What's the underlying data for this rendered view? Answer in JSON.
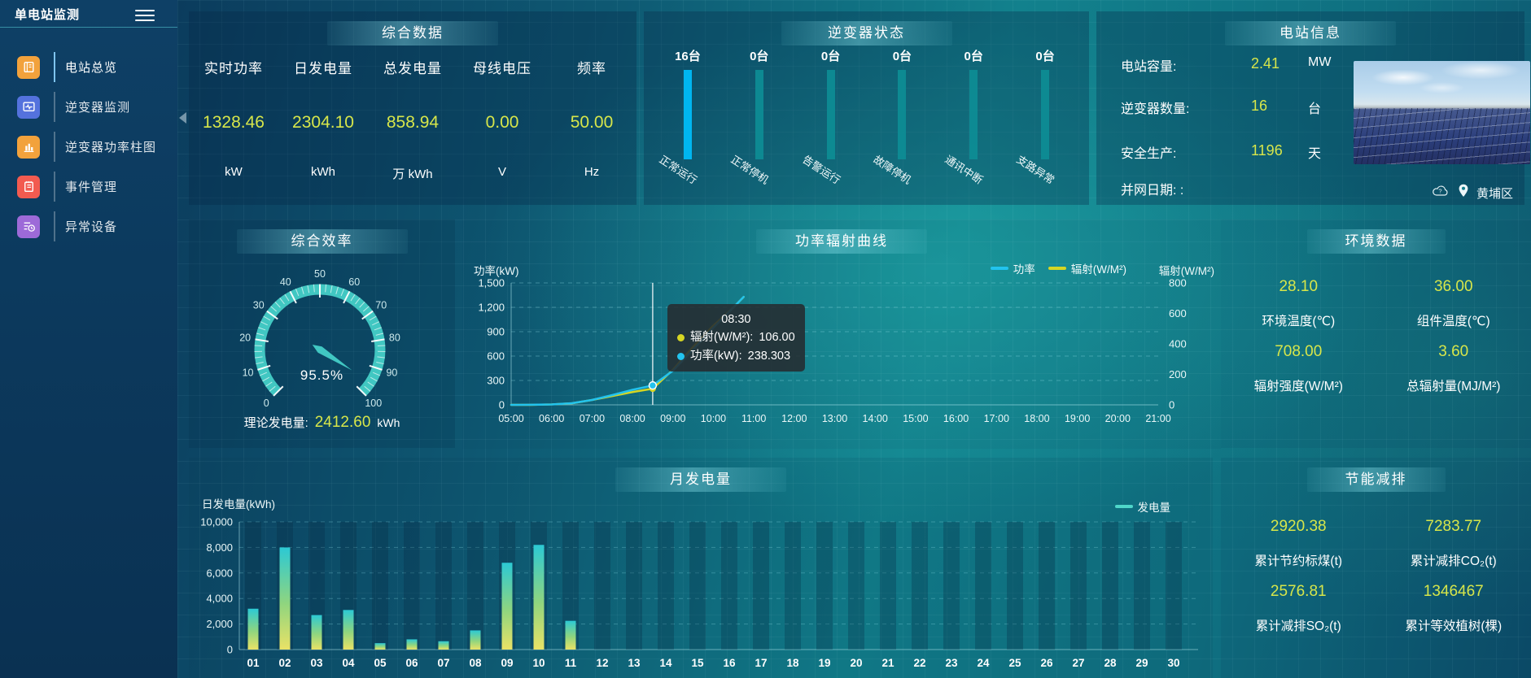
{
  "app": {
    "title": "单电站监测"
  },
  "sidebar": {
    "items": [
      {
        "label": "电站总览",
        "active": true
      },
      {
        "label": "逆变器监测",
        "active": false
      },
      {
        "label": "逆变器功率柱图",
        "active": false
      },
      {
        "label": "事件管理",
        "active": false
      },
      {
        "label": "异常设备",
        "active": false
      }
    ]
  },
  "panels": {
    "summary": {
      "title": "综合数据",
      "metrics": [
        {
          "label": "实时功率",
          "value": "1328.46",
          "unit": "kW"
        },
        {
          "label": "日发电量",
          "value": "2304.10",
          "unit": "kWh"
        },
        {
          "label": "总发电量",
          "value": "858.94",
          "unit": "万 kWh"
        },
        {
          "label": "母线电压",
          "value": "0.00",
          "unit": "V"
        },
        {
          "label": "频率",
          "value": "50.00",
          "unit": "Hz"
        }
      ]
    },
    "inverter_status": {
      "title": "逆变器状态",
      "items": [
        {
          "count": "16台",
          "label": "正常运行",
          "highlight": true
        },
        {
          "count": "0台",
          "label": "正常停机",
          "highlight": false
        },
        {
          "count": "0台",
          "label": "告警运行",
          "highlight": false
        },
        {
          "count": "0台",
          "label": "故障停机",
          "highlight": false
        },
        {
          "count": "0台",
          "label": "通讯中断",
          "highlight": false
        },
        {
          "count": "0台",
          "label": "支路异常",
          "highlight": false
        }
      ]
    },
    "station_info": {
      "title": "电站信息",
      "rows": [
        {
          "label": "电站容量:",
          "value": "2.41",
          "unit": "MW"
        },
        {
          "label": "逆变器数量:",
          "value": "16",
          "unit": "台"
        },
        {
          "label": "安全生产:",
          "value": "1196",
          "unit": "天"
        },
        {
          "label": "并网日期: :",
          "value": "",
          "unit": ""
        }
      ],
      "location": "黄埔区"
    },
    "efficiency": {
      "title": "综合效率",
      "value_text": "95.5%",
      "footer_label": "理论发电量:",
      "footer_value": "2412.60",
      "footer_unit": "kWh"
    },
    "power_curve": {
      "title": "功率辐射曲线",
      "ylabel_left": "功率(kW)",
      "ylabel_right": "辐射(W/M²)",
      "legend": [
        "功率",
        "辐射(W/M²)"
      ],
      "tooltip": {
        "time": "08:30",
        "rows": [
          {
            "label": "辐射(W/M²):",
            "value": "106.00"
          },
          {
            "label": "功率(kW):",
            "value": "238.303"
          }
        ]
      }
    },
    "environment": {
      "title": "环境数据",
      "metrics": [
        {
          "value": "28.10",
          "label": "环境温度(℃)"
        },
        {
          "value": "36.00",
          "label": "组件温度(℃)"
        },
        {
          "value": "708.00",
          "label": "辐射强度(W/M²)"
        },
        {
          "value": "3.60",
          "label": "总辐射量(MJ/M²)"
        }
      ]
    },
    "monthly": {
      "title": "月发电量",
      "ylabel": "日发电量(kWh)",
      "legend": "发电量"
    },
    "energy_saving": {
      "title": "节能减排",
      "metrics": [
        {
          "value": "2920.38",
          "label": "累计节约标煤(t)"
        },
        {
          "value": "7283.77",
          "label": "累计减排CO₂(t)"
        },
        {
          "value": "2576.81",
          "label": "累计减排SO₂(t)"
        },
        {
          "value": "1346467",
          "label": "累计等效植树(棵)"
        }
      ]
    }
  },
  "colors": {
    "value_yellow": "#d7e64a",
    "highlight_blue": "#00b6f0",
    "bar_teal": "#0d8d95",
    "gauge_teal": "#41c7c2",
    "line_power": "#22c3ee",
    "line_radiation": "#d6d623",
    "bar_gradient_top": "#2cc9d4",
    "bar_gradient_mid": "#8fd57f",
    "bar_gradient_bottom": "#e9e266"
  },
  "chart_data": [
    {
      "id": "inverter_status",
      "type": "bar",
      "unit": "台",
      "categories": [
        "正常运行",
        "正常停机",
        "告警运行",
        "故障停机",
        "通讯中断",
        "支路异常"
      ],
      "values": [
        16,
        0,
        0,
        0,
        0,
        0
      ]
    },
    {
      "id": "efficiency",
      "type": "gauge",
      "value": 95.5,
      "min": 0,
      "max": 100,
      "major_step": 10,
      "minor_step": 2,
      "unit": "%"
    },
    {
      "id": "power_radiation",
      "type": "line",
      "title": "功率辐射曲线",
      "x": [
        "05:00",
        "05:30",
        "06:00",
        "06:30",
        "07:00",
        "07:30",
        "08:00",
        "08:30",
        "09:00",
        "09:30",
        "10:00",
        "10:30",
        "10:45"
      ],
      "series": [
        {
          "name": "功率",
          "unit": "kW",
          "axis": "left",
          "values": [
            0,
            1,
            5,
            20,
            60,
            120,
            185,
            238.3,
            420,
            680,
            950,
            1200,
            1328.46
          ]
        },
        {
          "name": "辐射(W/M²)",
          "unit": "W/M²",
          "axis": "right",
          "values": [
            0,
            0,
            3,
            10,
            32,
            58,
            84,
            106,
            230,
            380,
            520,
            640,
            708
          ]
        }
      ],
      "ylim_left": [
        0,
        1500
      ],
      "left_ticks": [
        0,
        300,
        600,
        900,
        1200,
        1500
      ],
      "ylim_right": [
        0,
        800
      ],
      "right_ticks": [
        0,
        200,
        400,
        600,
        800
      ],
      "x_ticks": [
        "05:00",
        "06:00",
        "07:00",
        "08:00",
        "09:00",
        "10:00",
        "11:00",
        "12:00",
        "13:00",
        "14:00",
        "15:00",
        "16:00",
        "17:00",
        "18:00",
        "19:00",
        "20:00",
        "21:00"
      ],
      "pointer_x": "08:30",
      "pointer_values": {
        "功率": 238.303,
        "辐射(W/M²)": 106.0
      },
      "legend_position": "top-right",
      "grid": "dashed"
    },
    {
      "id": "monthly_generation",
      "type": "bar",
      "title": "月发电量",
      "ylabel": "日发电量(kWh)",
      "ylim": [
        0,
        10000
      ],
      "y_ticks": [
        0,
        2000,
        4000,
        6000,
        8000,
        10000
      ],
      "legend": [
        "发电量"
      ],
      "categories": [
        "01",
        "02",
        "03",
        "04",
        "05",
        "06",
        "07",
        "08",
        "09",
        "10",
        "11",
        "12",
        "13",
        "14",
        "15",
        "16",
        "17",
        "18",
        "19",
        "20",
        "21",
        "22",
        "23",
        "24",
        "25",
        "26",
        "27",
        "28",
        "29",
        "30"
      ],
      "values": [
        3200,
        8000,
        2700,
        3100,
        500,
        800,
        650,
        1500,
        6800,
        8200,
        2250,
        0,
        0,
        0,
        0,
        0,
        0,
        0,
        0,
        0,
        0,
        0,
        0,
        0,
        0,
        0,
        0,
        0,
        0,
        0
      ]
    }
  ]
}
